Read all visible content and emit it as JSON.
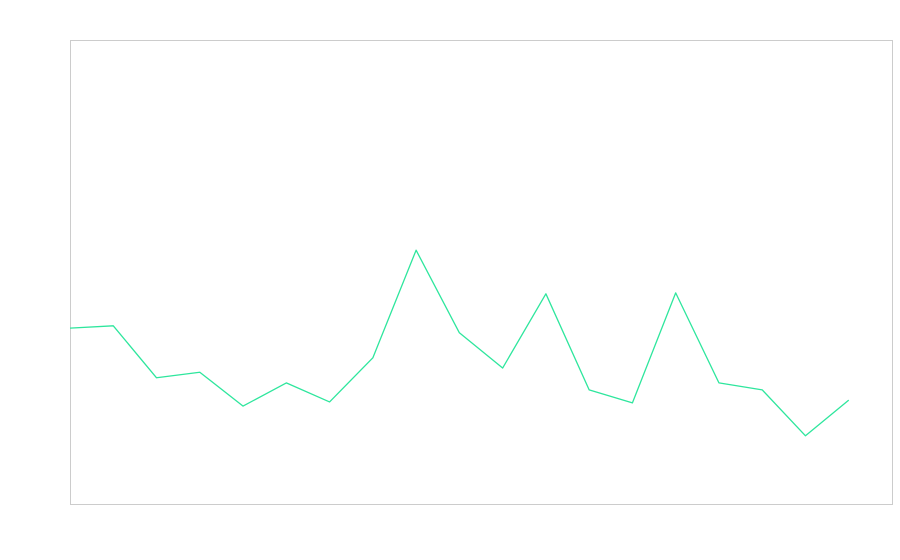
{
  "chart_data": {
    "type": "line",
    "x": [
      0,
      1,
      2,
      3,
      4,
      5,
      6,
      7,
      8,
      9,
      10,
      11,
      12,
      13,
      14,
      15,
      16,
      17,
      18
    ],
    "series": [
      {
        "color": "#2ee69d",
        "values": [
          37.9,
          38.4,
          27.2,
          28.4,
          21.1,
          26.1,
          22.0,
          31.5,
          54.7,
          36.9,
          29.3,
          45.3,
          24.6,
          21.8,
          45.5,
          26.1,
          24.6,
          14.7,
          22.4
        ]
      }
    ],
    "xlim": [
      0,
      19
    ],
    "ylim": [
      0,
      100
    ],
    "grid": false
  }
}
